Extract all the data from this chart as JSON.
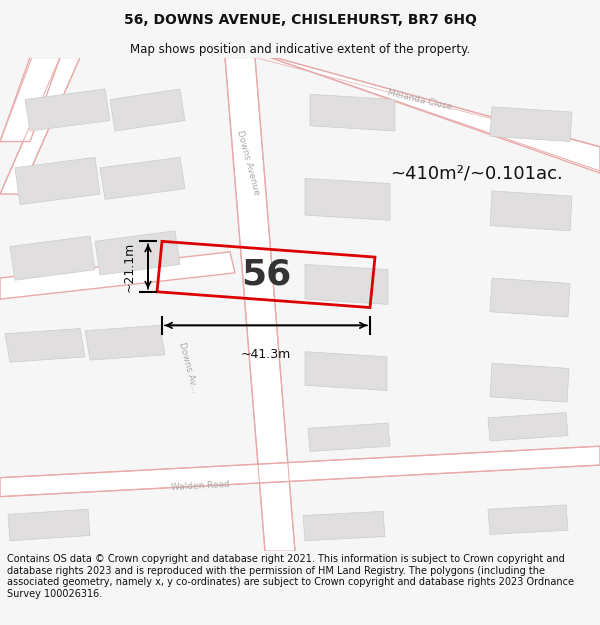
{
  "title": "56, DOWNS AVENUE, CHISLEHURST, BR7 6HQ",
  "subtitle": "Map shows position and indicative extent of the property.",
  "area_text": "~410m²/~0.101ac.",
  "property_number": "56",
  "dim_width": "~41.3m",
  "dim_height": "~21.1m",
  "footer": "Contains OS data © Crown copyright and database right 2021. This information is subject to Crown copyright and database rights 2023 and is reproduced with the permission of HM Land Registry. The polygons (including the associated geometry, namely x, y co-ordinates) are subject to Crown copyright and database rights 2023 Ordnance Survey 100026316.",
  "bg_color": "#f7f6f6",
  "map_bg": "#f7f6f6",
  "road_outline_color": "#e8aaaa",
  "building_color": "#e0dede",
  "building_edge": "#cccccc",
  "property_outline_color": "#dd0000",
  "title_fontsize": 10,
  "subtitle_fontsize": 8.5,
  "footer_fontsize": 7.0,
  "road_label_color": "#aaaaaa",
  "road_label_size": 6.5
}
